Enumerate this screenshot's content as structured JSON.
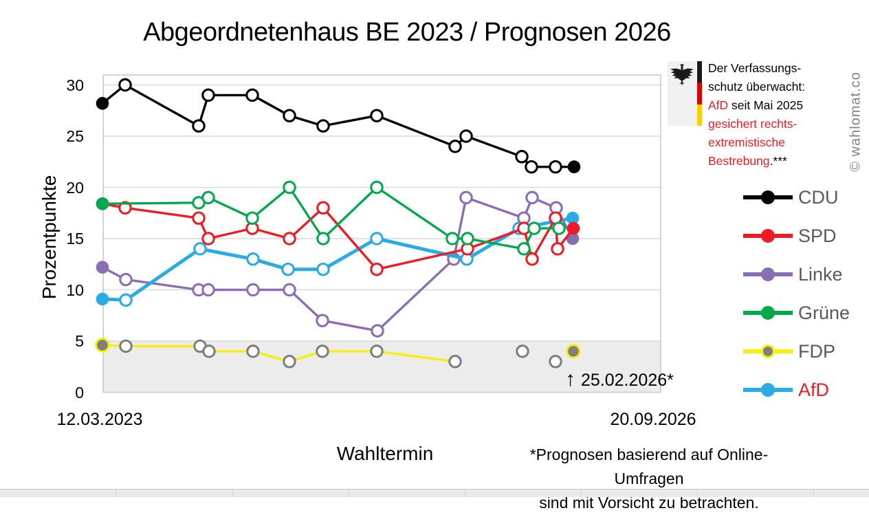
{
  "header": {
    "title": "Abgeordnetenhaus BE 2023 / Prognosen 2026"
  },
  "watermark": {
    "text": "© wahlomat.co"
  },
  "annotation_box": {
    "line1": "Der Verfassungs-",
    "line2": "schutz überwacht:",
    "line3_red": "AfD",
    "line3_rest": " seit Mai 2025",
    "line4": "gesichert rechts-",
    "line5": "extremistische",
    "line6_red": "Bestrebung",
    "line6_rest": ".***"
  },
  "event_marker": {
    "arrow": "↑",
    "label": "25.02.2026*"
  },
  "footnote": {
    "line1": "*Prognosen basierend auf Online-Umfragen",
    "line2": "sind mit Vorsicht zu betrachten."
  },
  "legend": {
    "items": [
      {
        "id": "cdu",
        "label": "CDU",
        "line": "#000000",
        "dot": "#000000",
        "ring": null,
        "label_color": "#595959"
      },
      {
        "id": "spd",
        "label": "SPD",
        "line": "#ed1c24",
        "dot": "#ed1c24",
        "ring": null,
        "label_color": "#595959"
      },
      {
        "id": "linke",
        "label": "Linke",
        "line": "#8a6db3",
        "dot": "#8a6db3",
        "ring": null,
        "label_color": "#595959"
      },
      {
        "id": "gruene",
        "label": "Grüne",
        "line": "#00a94e",
        "dot": "#00a94e",
        "ring": null,
        "label_color": "#595959"
      },
      {
        "id": "fdp",
        "label": "FDP",
        "line": "#f7ef0c",
        "dot": "#7f7f7f",
        "ring": "#f7ef0c",
        "label_color": "#595959"
      },
      {
        "id": "afd",
        "label": "AfD",
        "line": "#2aabe4",
        "dot": "#2aabe4",
        "ring": null,
        "label_color": "#ed1c24"
      }
    ]
  },
  "colors": {
    "grid": "#d9d9d9",
    "plot_border": "#c3c3c3",
    "shading_below_5": "#ececec",
    "text_gray": "#595959",
    "accent_red": "#ed1c24",
    "watermark_gray": "#828282",
    "flag_black": "#1a1a1a",
    "flag_red": "#dd0000",
    "flag_gold": "#ffce00"
  },
  "chart_data": {
    "type": "line",
    "title": "Abgeordnetenhaus BE 2023 / Prognosen 2026",
    "xlabel": "Wahltermin",
    "ylabel": "Prozentpunkte",
    "x_axis": {
      "start_label": "12.03.2023",
      "end_label": "20.09.2026",
      "prognosis_date_label": "25.02.2026*"
    },
    "y_axis": {
      "ticks": [
        0,
        5,
        10,
        15,
        20,
        25,
        30
      ],
      "range": [
        0,
        31
      ]
    },
    "shaded_band": {
      "from": 0,
      "to": 5
    },
    "point_format": "[x_px_on_time_axis, percent_value, is_filled_marker]",
    "notes": "first filled point = election result 12.03.2023, last filled point = prognosis 25.02.2026",
    "series": [
      {
        "name": "CDU",
        "color": "#000000",
        "line_width": 3.4,
        "points": [
          [
            149,
            28.2,
            1
          ],
          [
            182,
            30,
            0
          ],
          [
            289,
            26,
            0
          ],
          [
            303,
            29,
            0
          ],
          [
            367,
            29,
            0
          ],
          [
            421,
            27,
            0
          ],
          [
            470,
            26,
            0
          ],
          [
            548,
            27,
            0
          ],
          [
            662,
            24,
            0
          ],
          [
            678,
            25,
            0
          ],
          [
            759,
            23,
            0
          ],
          [
            773,
            22,
            0
          ],
          [
            808,
            22,
            0
          ],
          [
            835,
            22,
            1
          ]
        ]
      },
      {
        "name": "SPD",
        "color": "#ed1c24",
        "line_width": 3.4,
        "points": [
          [
            149,
            18.4,
            1
          ],
          [
            182,
            18,
            0
          ],
          [
            289,
            17,
            0
          ],
          [
            303,
            15,
            0
          ],
          [
            367,
            16,
            0
          ],
          [
            421,
            15,
            0
          ],
          [
            470,
            18,
            0
          ],
          [
            548,
            12,
            0
          ],
          [
            680,
            14,
            0
          ],
          [
            762,
            16,
            0
          ],
          [
            774,
            13,
            0
          ],
          [
            808,
            17,
            0
          ],
          [
            811,
            14,
            0
          ],
          [
            834,
            16,
            1
          ]
        ]
      },
      {
        "name": "Linke",
        "color": "#8a6db3",
        "line_width": 3.4,
        "points": [
          [
            149,
            12.2,
            1
          ],
          [
            183,
            11,
            0
          ],
          [
            289,
            10,
            0
          ],
          [
            303,
            10,
            0
          ],
          [
            368,
            10,
            0
          ],
          [
            421,
            10,
            0
          ],
          [
            469,
            7,
            0
          ],
          [
            549,
            6,
            0
          ],
          [
            660,
            13,
            0
          ],
          [
            678,
            19,
            0
          ],
          [
            762,
            17,
            0
          ],
          [
            774,
            19,
            0
          ],
          [
            809,
            18,
            0
          ],
          [
            833,
            15,
            1
          ]
        ]
      },
      {
        "name": "Grüne",
        "color": "#00a94e",
        "line_width": 3.4,
        "points": [
          [
            149,
            18.4,
            1
          ],
          [
            289,
            18.5,
            0
          ],
          [
            303,
            19,
            0
          ],
          [
            367,
            17,
            0
          ],
          [
            421,
            20,
            0
          ],
          [
            470,
            15,
            0
          ],
          [
            548,
            20,
            0
          ],
          [
            658,
            15,
            0
          ],
          [
            680,
            15,
            0
          ],
          [
            762,
            14,
            0
          ],
          [
            777,
            16,
            0
          ],
          [
            813,
            16,
            0
          ]
        ]
      },
      {
        "name": "FDP",
        "color": "#f7ef0c",
        "line_width": 3.4,
        "marker_color": "#7f7f7f",
        "filled_ring": "#f7ef0c",
        "points": [
          [
            149,
            4.6,
            1
          ],
          [
            183,
            4.5,
            0
          ],
          [
            291,
            4.5,
            0
          ],
          [
            304,
            4,
            0
          ],
          [
            368,
            4,
            0
          ],
          [
            421,
            3,
            0
          ],
          [
            469,
            4,
            0
          ],
          [
            548,
            4,
            0
          ],
          [
            662,
            3,
            0
          ]
        ],
        "isolated": [
          [
            760,
            4,
            0
          ],
          [
            808,
            3,
            0
          ],
          [
            834,
            4,
            1
          ]
        ]
      },
      {
        "name": "AfD",
        "color": "#2aabe4",
        "line_width": 5,
        "points": [
          [
            149,
            9.1,
            1
          ],
          [
            183,
            9,
            0
          ],
          [
            291,
            14,
            0
          ],
          [
            368,
            13,
            0
          ],
          [
            419,
            12,
            0
          ],
          [
            470,
            12,
            0
          ],
          [
            548,
            15,
            0
          ],
          [
            679,
            13,
            0
          ],
          [
            755,
            16,
            0
          ],
          [
            833,
            17,
            1
          ]
        ]
      }
    ]
  }
}
